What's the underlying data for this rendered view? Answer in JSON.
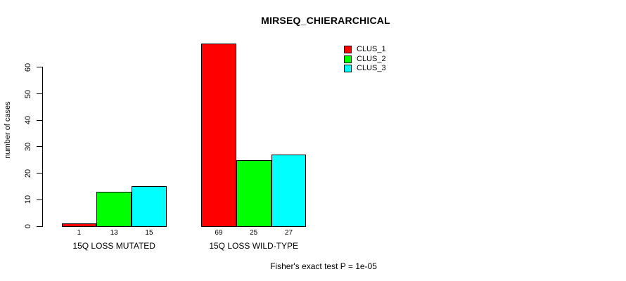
{
  "chart_data": {
    "type": "bar",
    "title": "MIRSEQ_CHIERARCHICAL",
    "ylabel": "number of cases",
    "xlabel": "",
    "categories": [
      "15Q LOSS MUTATED",
      "15Q LOSS WILD-TYPE"
    ],
    "series": [
      {
        "name": "CLUS_1",
        "color": "#ff0000",
        "values": [
          1,
          69
        ]
      },
      {
        "name": "CLUS_2",
        "color": "#00ff00",
        "values": [
          13,
          25
        ]
      },
      {
        "name": "CLUS_3",
        "color": "#00ffff",
        "values": [
          15,
          27
        ]
      }
    ],
    "bar_value_labels": [
      [
        "1",
        "13",
        "15"
      ],
      [
        "69",
        "25",
        "27"
      ]
    ],
    "yticks": [
      0,
      10,
      20,
      30,
      40,
      50,
      60
    ],
    "ylim": [
      0,
      69
    ],
    "grid": false,
    "legend_position": "top-right",
    "annotation": "Fisher's exact test P = 1e-05"
  },
  "colors": {
    "background": "#ffffff",
    "axis": "#000000",
    "text": "#000000",
    "clus_1": "#ff0000",
    "clus_2": "#00ff00",
    "clus_3": "#00ffff"
  }
}
